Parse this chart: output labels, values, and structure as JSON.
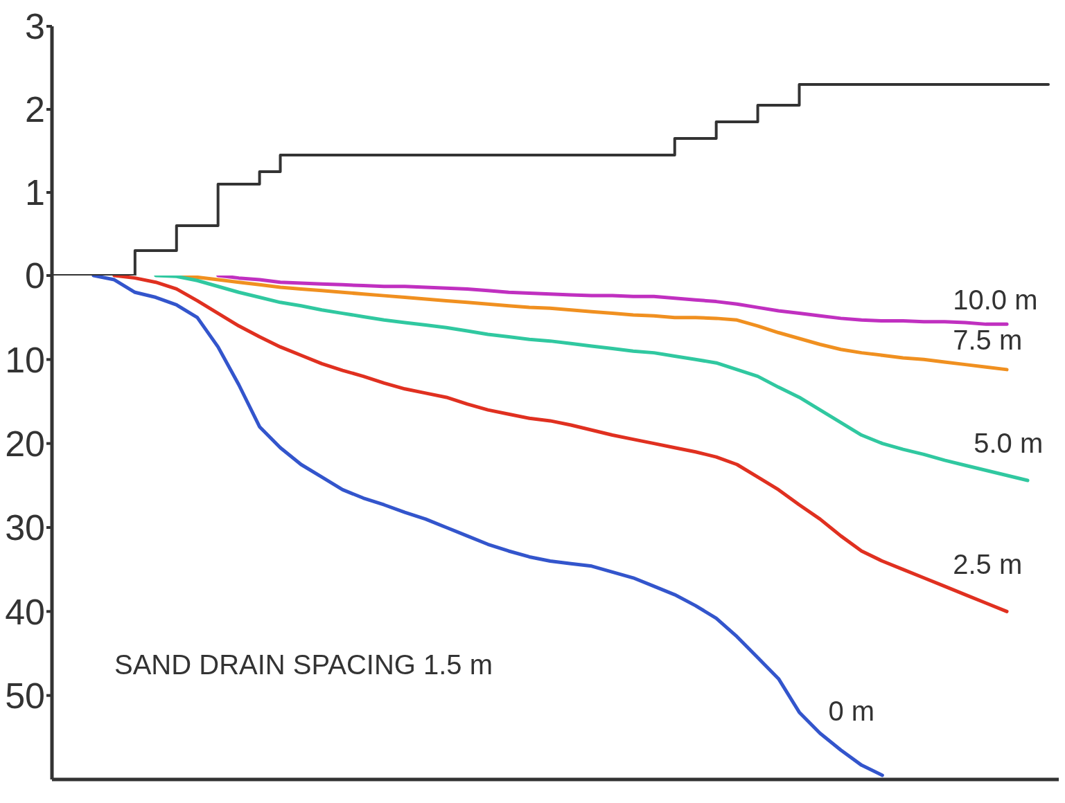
{
  "chart_data": [
    {
      "type": "step",
      "categories": [
        null,
        null,
        null,
        null,
        null,
        null,
        null,
        null,
        null,
        null,
        null,
        null,
        null,
        null,
        null,
        null,
        null,
        null,
        null,
        null,
        null,
        null,
        null,
        null,
        null,
        null,
        null,
        null,
        null,
        null,
        null,
        null,
        null,
        null,
        null,
        null,
        null,
        null,
        null,
        null,
        null,
        null,
        null,
        null,
        null,
        null,
        null,
        null,
        null
      ],
      "series": [
        {
          "color": "#333333",
          "values": [
            0,
            0,
            0,
            0,
            0.3,
            0.3,
            0.6,
            0.6,
            1.1,
            1.1,
            1.25,
            1.45,
            1.45,
            1.45,
            1.45,
            1.45,
            1.45,
            1.45,
            1.45,
            1.45,
            1.45,
            1.45,
            1.45,
            1.45,
            1.45,
            1.45,
            1.45,
            1.45,
            1.45,
            1.45,
            1.65,
            1.65,
            1.85,
            1.85,
            2.05,
            2.05,
            2.3,
            2.3,
            2.3,
            2.3,
            2.3,
            2.3,
            2.3,
            2.3,
            2.3,
            2.3,
            2.3,
            2.3,
            2.3
          ]
        }
      ],
      "ylim": [
        0,
        3
      ],
      "yticks": [
        0,
        1,
        2,
        3
      ],
      "tick_labels": "y"
    },
    {
      "type": "line",
      "categories": [
        null,
        null,
        null,
        null,
        null,
        null,
        null,
        null,
        null,
        null,
        null,
        null,
        null,
        null,
        null,
        null,
        null,
        null,
        null,
        null,
        null,
        null,
        null,
        null,
        null,
        null,
        null,
        null,
        null,
        null,
        null,
        null,
        null,
        null,
        null,
        null,
        null,
        null,
        null,
        null,
        null,
        null,
        null,
        null,
        null,
        null,
        null,
        null,
        null
      ],
      "series": [
        {
          "name": "10.0 m",
          "color": "#c030c0",
          "values": [
            null,
            null,
            null,
            null,
            null,
            null,
            null,
            null,
            0,
            0.3,
            0.5,
            0.8,
            0.9,
            1,
            1.1,
            1.2,
            1.3,
            1.3,
            1.4,
            1.5,
            1.6,
            1.8,
            2,
            2.1,
            2.2,
            2.3,
            2.4,
            2.4,
            2.5,
            2.5,
            2.7,
            2.9,
            3.1,
            3.4,
            3.8,
            4.2,
            4.5,
            4.8,
            5.1,
            5.3,
            5.4,
            5.4,
            5.5,
            5.5,
            5.6,
            5.8,
            5.8,
            null,
            null
          ]
        },
        {
          "name": "7.5 m",
          "color": "#f09020",
          "values": [
            null,
            null,
            null,
            null,
            null,
            null,
            0,
            0.2,
            0.5,
            0.8,
            1.1,
            1.4,
            1.6,
            1.8,
            2,
            2.2,
            2.4,
            2.6,
            2.8,
            3,
            3.2,
            3.4,
            3.6,
            3.8,
            3.9,
            4.1,
            4.3,
            4.5,
            4.7,
            4.8,
            5,
            5,
            5.1,
            5.3,
            6,
            6.8,
            7.5,
            8.2,
            8.8,
            9.2,
            9.5,
            9.8,
            10,
            10.3,
            10.6,
            10.9,
            11.2,
            null,
            null
          ]
        },
        {
          "name": "5.0 m",
          "color": "#30c8a0",
          "values": [
            null,
            null,
            null,
            null,
            null,
            0,
            0.1,
            0.6,
            1.3,
            2,
            2.6,
            3.2,
            3.6,
            4.1,
            4.5,
            4.9,
            5.3,
            5.6,
            5.9,
            6.2,
            6.6,
            7,
            7.3,
            7.6,
            7.8,
            8.1,
            8.4,
            8.7,
            9,
            9.2,
            9.6,
            10,
            10.4,
            11.2,
            12,
            13.3,
            14.5,
            16,
            17.5,
            19,
            20,
            20.7,
            21.3,
            22,
            22.6,
            23.2,
            23.8,
            24.4,
            null
          ]
        },
        {
          "name": "2.5 m",
          "color": "#e03020",
          "values": [
            null,
            null,
            null,
            0,
            0.3,
            0.8,
            1.6,
            3,
            4.5,
            6,
            7.3,
            8.5,
            9.5,
            10.5,
            11.3,
            12,
            12.8,
            13.5,
            14,
            14.5,
            15.3,
            16,
            16.5,
            17,
            17.3,
            17.8,
            18.4,
            19,
            19.5,
            20,
            20.5,
            21,
            21.6,
            22.5,
            24,
            25.5,
            27.3,
            29,
            31,
            32.8,
            34,
            35,
            36,
            37,
            38,
            39,
            40,
            null,
            null
          ]
        },
        {
          "name": "0 m",
          "color": "#3355cc",
          "values": [
            null,
            null,
            0,
            0.5,
            2,
            2.6,
            3.5,
            5,
            8.5,
            13,
            18,
            20.5,
            22.5,
            24,
            25.5,
            26.5,
            27.3,
            28.2,
            29,
            30,
            31,
            32,
            32.8,
            33.5,
            34,
            34.3,
            34.6,
            35.3,
            36,
            37,
            38,
            39.3,
            40.8,
            43,
            45.5,
            48,
            52,
            54.5,
            56.5,
            58.3,
            59.5,
            null,
            null,
            null,
            null,
            null,
            null,
            null,
            null
          ]
        }
      ],
      "ylim": [
        60,
        0
      ],
      "yticks": [
        {
          "value": 0,
          "label": null
        },
        10,
        20,
        30,
        40,
        50
      ],
      "tick_labels": "y",
      "annotations": [
        "SAND DRAIN SPACING 1.5 m"
      ]
    }
  ]
}
